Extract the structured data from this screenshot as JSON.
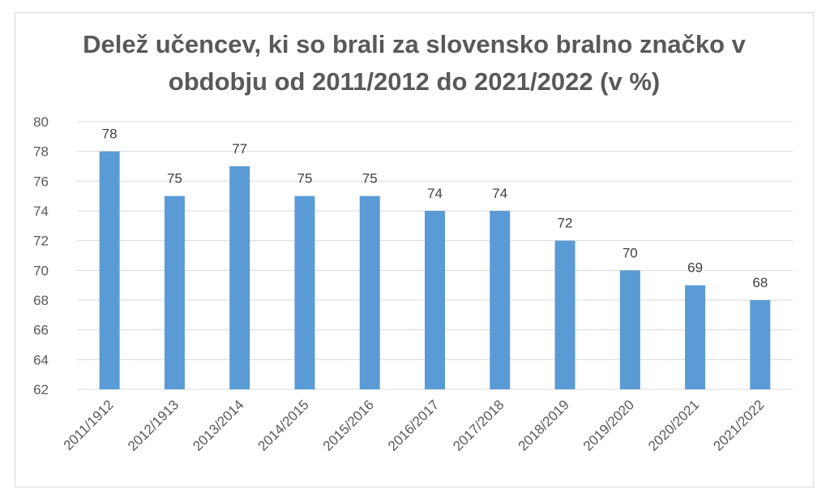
{
  "chart_data": {
    "type": "bar",
    "title_lines": [
      "Delež učencev, ki so brali za slovensko bralno značko v",
      "obdobju od 2011/2012 do 2021/2022 (v %)"
    ],
    "categories": [
      "2011/1912",
      "2012/1913",
      "2013/2014",
      "2014/2015",
      "2015/2016",
      "2016/2017",
      "2017/2018",
      "2018/2019",
      "2019/2020",
      "2020/2021",
      "2021/2022"
    ],
    "values": [
      78,
      75,
      77,
      75,
      75,
      74,
      74,
      72,
      70,
      69,
      68
    ],
    "data_labels": [
      "78",
      "75",
      "77",
      "75",
      "75",
      "74",
      "74",
      "72",
      "70",
      "69",
      "68"
    ],
    "y_ticks": [
      62,
      64,
      66,
      68,
      70,
      72,
      74,
      76,
      78,
      80
    ],
    "ylim": [
      62,
      80
    ],
    "grid": true,
    "bar_color": "#5b9bd5",
    "grid_color": "#d9d9d9"
  }
}
